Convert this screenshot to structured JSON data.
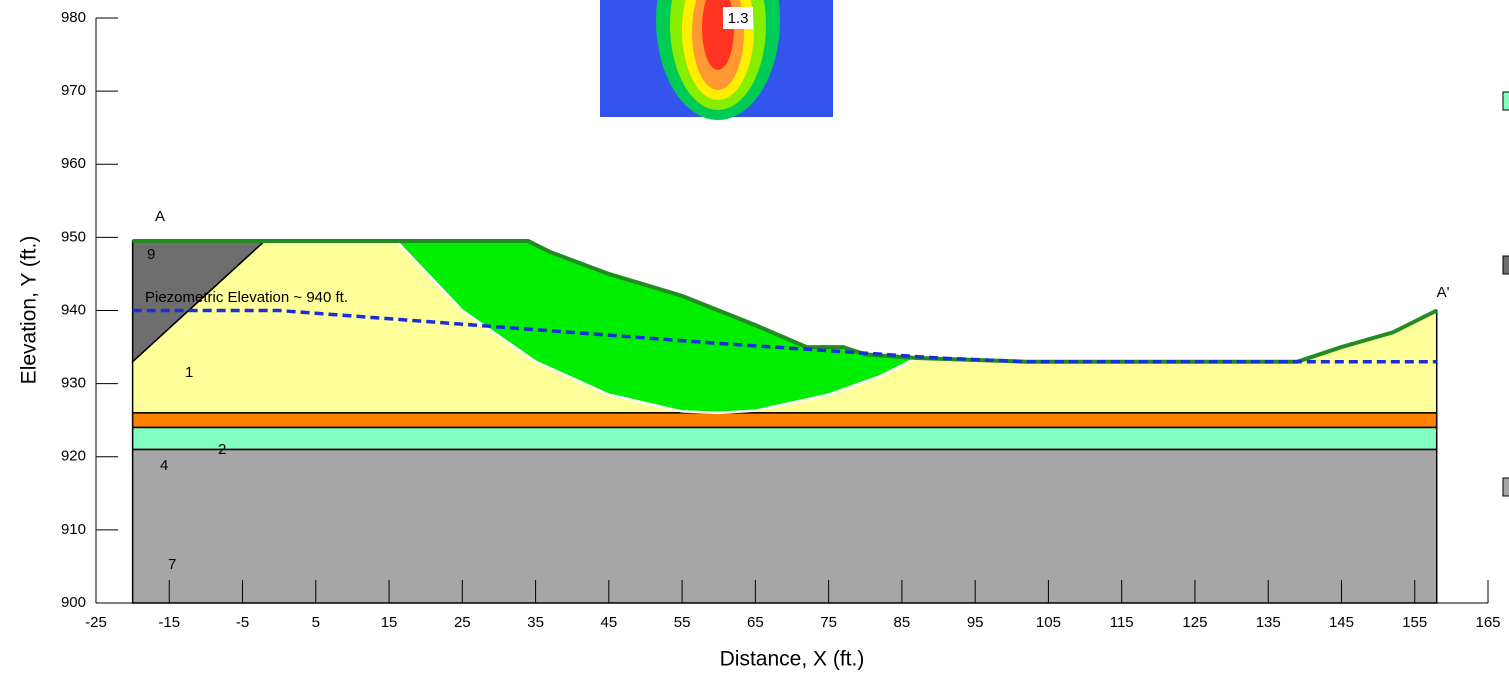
{
  "chart_data": {
    "type": "section",
    "x_label": "Distance, X (ft.)",
    "y_label": "Elevation, Y (ft.)",
    "xlim": [
      -25,
      165
    ],
    "ylim": [
      900,
      980
    ],
    "xticks": [
      -25,
      -15,
      -5,
      5,
      15,
      25,
      35,
      45,
      55,
      65,
      75,
      85,
      95,
      105,
      115,
      125,
      135,
      145,
      155,
      165
    ],
    "yticks": [
      900,
      910,
      920,
      930,
      940,
      950,
      960,
      970,
      980
    ],
    "regions": [
      {
        "label": "1",
        "color": "#ffff99",
        "x": [
          -20,
          -2,
          34,
          37,
          45,
          55,
          65,
          72,
          77,
          80,
          87,
          102,
          139,
          145,
          152,
          158,
          158,
          -20
        ],
        "y": [
          933,
          949.5,
          949.5,
          948,
          945,
          942,
          938,
          935,
          935,
          934,
          933.5,
          933,
          933,
          935,
          937,
          940,
          926,
          926
        ]
      },
      {
        "label": "9",
        "color": "#6e6e6e",
        "x": [
          -20,
          -2,
          -20
        ],
        "y": [
          949.5,
          949.5,
          933
        ]
      },
      {
        "label": "2",
        "color": "#ff8000",
        "x": [
          -20,
          158,
          158,
          -20
        ],
        "y": [
          926,
          926,
          924,
          924
        ]
      },
      {
        "label": "4",
        "color": "#80ffc0",
        "x": [
          -20,
          158,
          158,
          -20
        ],
        "y": [
          924,
          924,
          921,
          921
        ]
      },
      {
        "label": "7",
        "color": "#a6a6a6",
        "x": [
          -20,
          158,
          158,
          -20
        ],
        "y": [
          921,
          921,
          900,
          900
        ]
      },
      {
        "color": "#00ee00",
        "x": [
          16,
          25,
          35,
          45,
          55,
          60,
          65,
          75,
          82,
          87,
          80,
          77,
          72,
          65,
          55,
          45,
          37,
          34
        ],
        "y": [
          949.5,
          940,
          933,
          928.5,
          926.2,
          926,
          926.3,
          928.5,
          931,
          933.5,
          934,
          935,
          935,
          938,
          942,
          945,
          948,
          949.5
        ]
      }
    ],
    "lines": [
      {
        "color": "#ffffff",
        "style": "solid",
        "width": 2.5,
        "x": [
          16,
          25,
          35,
          45,
          55,
          60,
          65,
          75,
          82,
          87
        ],
        "y": [
          949.5,
          940,
          933,
          928.5,
          926.2,
          926,
          926.3,
          928.5,
          931,
          933.5
        ]
      },
      {
        "color": "#228b22",
        "style": "solid",
        "width": 4,
        "x": [
          -20,
          34,
          37,
          45,
          55,
          65,
          72,
          77,
          80,
          87,
          102,
          139,
          145,
          152,
          158
        ],
        "y": [
          949.5,
          949.5,
          948,
          945,
          942,
          938,
          935,
          935,
          934,
          933.5,
          933,
          933,
          935,
          937,
          940
        ]
      },
      {
        "color": "#1a2fd6",
        "style": "dashed",
        "width": 3.5,
        "x": [
          -20,
          0,
          20,
          40,
          60,
          75,
          90,
          102,
          139,
          158
        ],
        "y": [
          940,
          940,
          938.5,
          937,
          935.5,
          934.5,
          933.5,
          933,
          933,
          933
        ]
      }
    ],
    "annotations": [
      "A",
      "A'",
      "Piezometric Elevation ~ 940 ft."
    ],
    "factor_of_safety": 1.3
  }
}
